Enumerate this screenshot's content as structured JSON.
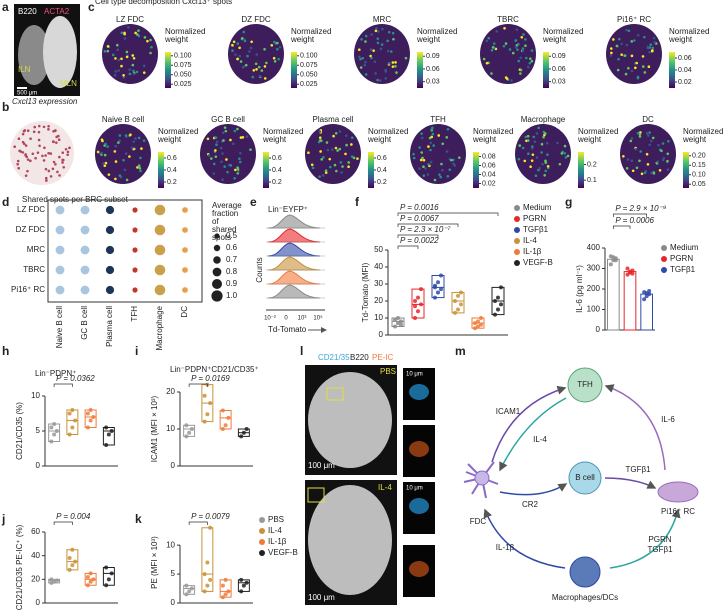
{
  "a": {
    "letter": "a",
    "stain1": "B220",
    "stain2": "ACTA2",
    "region1": "ILN",
    "region2": "MLN",
    "scale": "500 μm"
  },
  "c": {
    "letter": "c",
    "title": "Cell type decomposition Cxcl13⁺ spots",
    "colorbar_label": "Normalized weight",
    "maps": [
      {
        "name": "LZ FDC",
        "clim": [
          0.015,
          0.11
        ],
        "ticks": [
          {
            "value": 0.1,
            "label": "0.100"
          },
          0.075,
          {
            "value": 0.05,
            "label": "0.050"
          },
          0.025
        ]
      },
      {
        "name": "DZ FDC",
        "clim": [
          0.015,
          0.11
        ],
        "ticks": [
          {
            "value": 0.1,
            "label": "0.100"
          },
          0.075,
          {
            "value": 0.05,
            "label": "0.050"
          },
          0.025
        ]
      },
      {
        "name": "MRC",
        "clim": [
          0.015,
          0.1
        ],
        "ticks": [
          0.09,
          0.06,
          0.03
        ]
      },
      {
        "name": "TBRC",
        "clim": [
          0.015,
          0.1
        ],
        "ticks": [
          0.09,
          0.06,
          0.03
        ]
      },
      {
        "name": "Pi16⁺ RC",
        "clim": [
          0.01,
          0.07
        ],
        "ticks": [
          0.06,
          0.04,
          0.02
        ]
      }
    ]
  },
  "b": {
    "letter": "b",
    "title": "Cxcl13 expression",
    "colorbar_label": "Normalized weight",
    "maps": [
      {
        "name": "Naive B cell",
        "clim": [
          0.1,
          0.7
        ],
        "ticks": [
          0.6,
          0.4,
          0.2
        ]
      },
      {
        "name": "GC B cell",
        "clim": [
          0.1,
          0.7
        ],
        "ticks": [
          0.6,
          0.4,
          0.2
        ]
      },
      {
        "name": "Plasma cell",
        "clim": [
          0.1,
          0.7
        ],
        "ticks": [
          0.6,
          0.4,
          0.2
        ]
      },
      {
        "name": "TFH",
        "clim": [
          0.01,
          0.09
        ],
        "ticks": [
          0.08,
          0.06,
          0.04,
          0.02
        ]
      },
      {
        "name": "Macrophage",
        "clim": [
          0.05,
          0.28
        ],
        "ticks": [
          0.2,
          0.1
        ]
      },
      {
        "name": "DC",
        "clim": [
          0.03,
          0.22
        ],
        "ticks": [
          {
            "value": 0.2,
            "label": "0.20"
          },
          0.15,
          {
            "value": 0.1,
            "label": "0.10"
          },
          0.05
        ]
      }
    ]
  },
  "d": {
    "letter": "d",
    "title": "Shared spots per BRC subset",
    "size_title": "Average fraction of shared spots",
    "rows": [
      "LZ FDC",
      "DZ FDC",
      "MRC",
      "TBRC",
      "Pi16⁺ RC"
    ],
    "columns": [
      "Naive B cell",
      "GC B cell",
      "Plasma cell",
      "TFH",
      "Macrophage",
      "DC"
    ],
    "colors": [
      "#a9c6de",
      "#a9c6de",
      "#1f3557",
      "#c0392b",
      "#c8a14a",
      "#e6a04a"
    ],
    "values": [
      [
        0.8,
        0.8,
        0.75,
        0.5,
        0.95,
        0.55
      ],
      [
        0.8,
        0.8,
        0.75,
        0.5,
        0.95,
        0.55
      ],
      [
        0.8,
        0.8,
        0.75,
        0.5,
        0.95,
        0.55
      ],
      [
        0.8,
        0.8,
        0.75,
        0.5,
        0.95,
        0.55
      ],
      [
        0.8,
        0.8,
        0.75,
        0.5,
        0.95,
        0.55
      ]
    ],
    "size_ticks": [
      0.5,
      0.6,
      0.7,
      0.8,
      0.9,
      {
        "value": 1,
        "label": "1.0"
      }
    ]
  },
  "e": {
    "letter": "e",
    "title": "Lin⁻EYFP⁺",
    "ylabel": "Counts",
    "xlabel": "Td-Tomato",
    "xticks": [
      "10⁻²",
      "0",
      "10³",
      "10⁵"
    ]
  },
  "f": {
    "letter": "f",
    "type": "box",
    "ylabel": "Td-Tomato (MFI)",
    "ylim": [
      0,
      50
    ],
    "yticks": [
      0,
      10,
      20,
      30,
      40,
      50
    ],
    "pvalues": [
      "P = 0.0016",
      "P = 0.0067",
      "P = 2.3 × 10⁻⁷",
      "P = 0.0022"
    ],
    "groups": [
      {
        "name": "Medium",
        "color": "#8a8a8a",
        "points": [
          5,
          7,
          8,
          9,
          10,
          6
        ]
      },
      {
        "name": "PGRN",
        "color": "#e8262a",
        "points": [
          10,
          14,
          18,
          20,
          22,
          27,
          17
        ]
      },
      {
        "name": "TGFβ1",
        "color": "#2e4aa8",
        "points": [
          22,
          25,
          27,
          29,
          31,
          35,
          28
        ]
      },
      {
        "name": "IL-4",
        "color": "#c8913a",
        "points": [
          13,
          15,
          18,
          20,
          23,
          25
        ]
      },
      {
        "name": "IL-1β",
        "color": "#f07a3a",
        "points": [
          4,
          5,
          6,
          7,
          8,
          10
        ]
      },
      {
        "name": "VEGF-B",
        "color": "#222222",
        "points": [
          12,
          15,
          18,
          20,
          22,
          28
        ]
      }
    ]
  },
  "g": {
    "letter": "g",
    "type": "bar",
    "ylabel": "IL-6 (pg ml⁻¹)",
    "ylim": [
      0,
      400
    ],
    "yticks": [
      0,
      100,
      200,
      300,
      400
    ],
    "pvalues": [
      "P = 2.9 × 10⁻⁹",
      "P = 0.0006"
    ],
    "groups": [
      {
        "name": "Medium",
        "color": "#8a8a8a",
        "value": 345,
        "points": [
          320,
          340,
          350,
          360,
          355,
          340
        ]
      },
      {
        "name": "PGRN",
        "color": "#e8262a",
        "value": 285,
        "points": [
          270,
          280,
          290,
          300,
          285,
          275
        ]
      },
      {
        "name": "TGFβ1",
        "color": "#2e4aa8",
        "value": 175,
        "points": [
          150,
          165,
          175,
          185,
          180,
          190
        ]
      }
    ]
  },
  "hk_groups": [
    {
      "name": "PBS",
      "color": "#999999"
    },
    {
      "name": "IL-4",
      "color": "#c8913a"
    },
    {
      "name": "IL-1β",
      "color": "#f07a3a"
    },
    {
      "name": "VEGF-B",
      "color": "#222222"
    }
  ],
  "h": {
    "letter": "h",
    "title": "Lin⁻PDPN⁺",
    "ylabel": "CD21/CD35 (%)",
    "ylim": [
      0,
      10
    ],
    "yticks": [
      0,
      5,
      10
    ],
    "pvalues": [
      "P = 0.0362"
    ],
    "groups": [
      {
        "points": [
          3.5,
          4.5,
          5,
          5.5,
          6
        ]
      },
      {
        "points": [
          4.5,
          5.5,
          6.5,
          7.5,
          8
        ]
      },
      {
        "points": [
          5.5,
          6.5,
          7,
          7.5,
          8
        ]
      },
      {
        "points": [
          3,
          4.5,
          5,
          5.5
        ]
      }
    ]
  },
  "i": {
    "letter": "i",
    "title": "Lin⁻PDPN⁺CD21/CD35⁺",
    "ylabel": "ICAM1 (MFI × 10³)",
    "ylim": [
      0,
      20
    ],
    "yticks": [
      0,
      10,
      20
    ],
    "pvalues": [
      "P = 0.0169"
    ],
    "groups": [
      {
        "points": [
          8,
          9,
          10,
          11
        ]
      },
      {
        "points": [
          12,
          14,
          17,
          19,
          22
        ]
      },
      {
        "points": [
          10,
          11,
          13,
          15
        ]
      },
      {
        "points": [
          8,
          9,
          10
        ]
      }
    ]
  },
  "j": {
    "letter": "j",
    "ylabel": "CD21/CD35 PE-IC⁺ (%)",
    "ylim": [
      0,
      60
    ],
    "yticks": [
      0,
      20,
      40,
      60
    ],
    "pvalues": [
      "P = 0.004"
    ],
    "groups": [
      {
        "points": [
          17,
          18,
          19,
          20
        ]
      },
      {
        "points": [
          28,
          32,
          35,
          38,
          45
        ]
      },
      {
        "points": [
          15,
          18,
          20,
          22,
          25
        ]
      },
      {
        "points": [
          15,
          20,
          25,
          30
        ]
      }
    ]
  },
  "k": {
    "letter": "k",
    "ylabel": "PE (MFI × 10³)",
    "ylim": [
      0,
      14
    ],
    "yticks": [
      0,
      5,
      10
    ],
    "pvalues": [
      "P = 0.0079"
    ],
    "groups": [
      {
        "points": [
          1.5,
          2,
          2.5,
          3
        ]
      },
      {
        "points": [
          2,
          3,
          4,
          5,
          7,
          13
        ]
      },
      {
        "points": [
          1,
          1.5,
          2,
          3,
          4
        ]
      },
      {
        "points": [
          2,
          3,
          3.5,
          4
        ]
      }
    ]
  },
  "l": {
    "letter": "l",
    "stain1": "CD21/35",
    "stain2": "B220",
    "stain3": "PE-IC",
    "cond1": "PBS",
    "cond2": "IL-4",
    "scale_large": "100 μm",
    "scale_small": "10 μm"
  },
  "m": {
    "letter": "m",
    "nodes": {
      "tfh": "TFH",
      "bcell": "B cell",
      "fdc": "FDC",
      "rc": "Pi16⁺ RC",
      "mac": "Macrophages/DCs"
    },
    "edges": [
      "ICAM1",
      "IL-4",
      "IL-6",
      "CR2",
      "TGFβ1",
      "IL-1β",
      "PGRN",
      "TGFβ1"
    ]
  }
}
